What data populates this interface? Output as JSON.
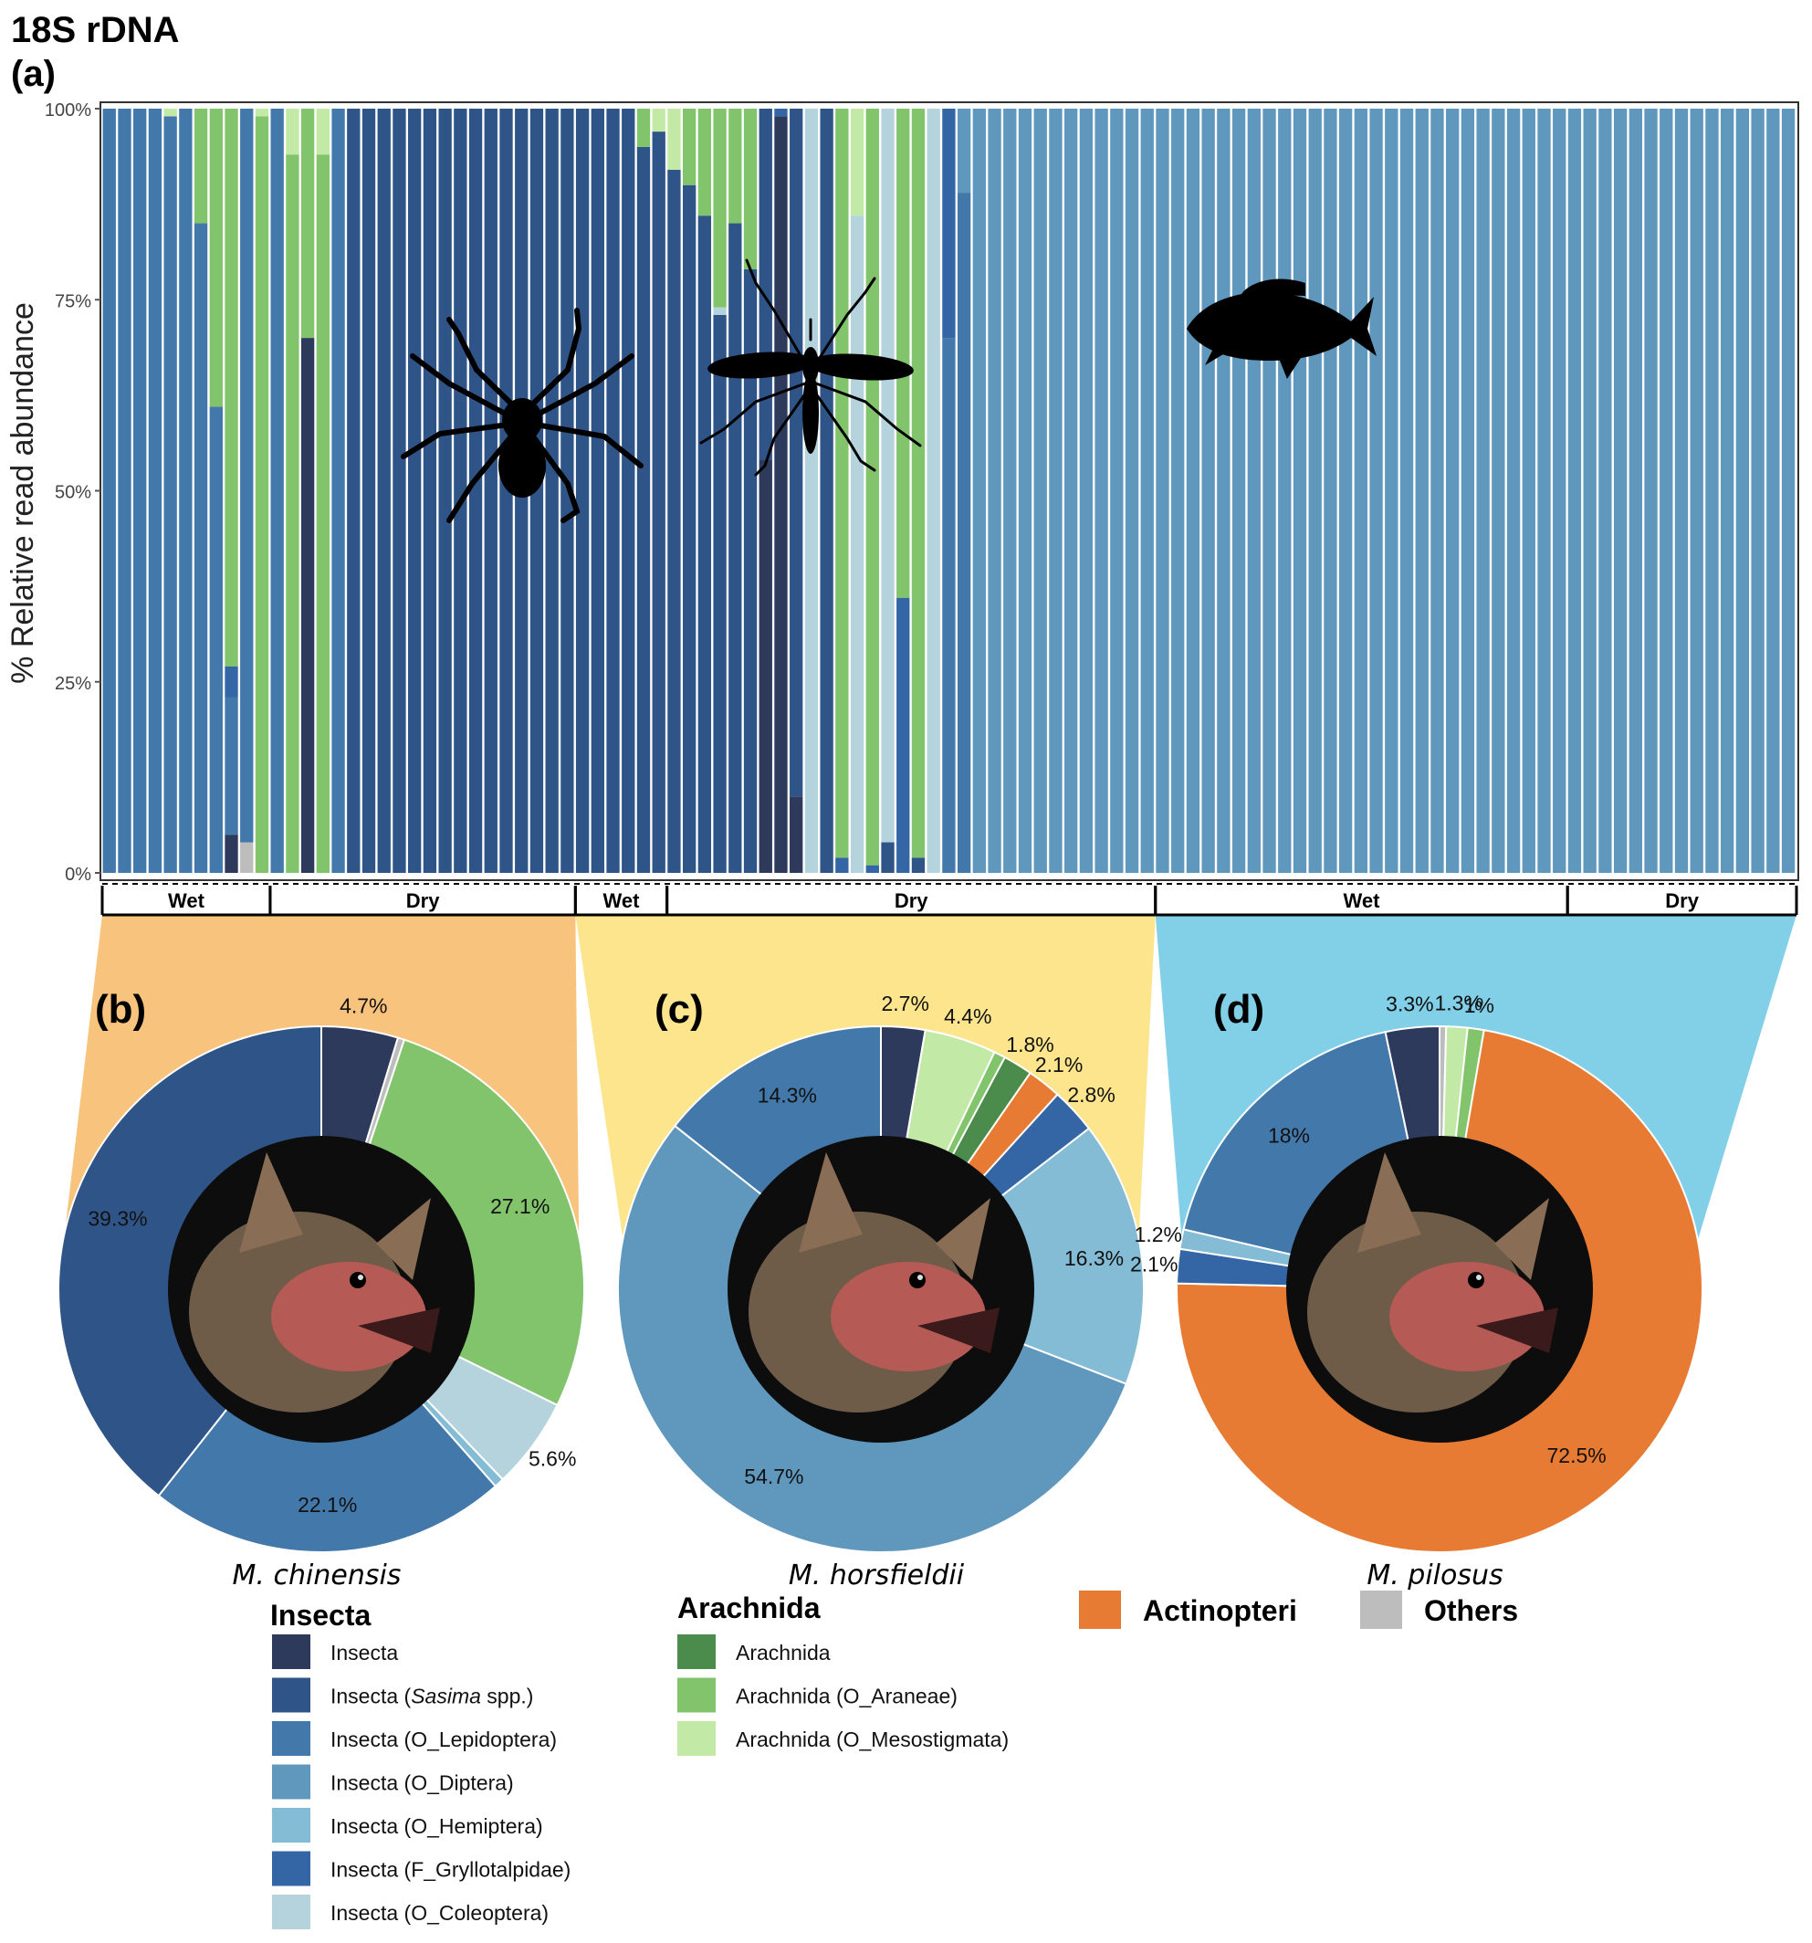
{
  "figure": {
    "title": "18S rDNA",
    "panel_a_label": "(a)",
    "ylabel": "% Relative read abundance",
    "yticks": [
      "0%",
      "25%",
      "50%",
      "75%",
      "100%"
    ],
    "season_groups": [
      {
        "bat": "M. chinensis",
        "accent": "#f8c37c",
        "seasons": [
          {
            "label": "Wet",
            "start": 0,
            "end": 11
          },
          {
            "label": "Dry",
            "start": 11,
            "end": 31
          }
        ]
      },
      {
        "bat": "M. horsfieldii",
        "accent": "#fce58c",
        "seasons": [
          {
            "label": "Wet",
            "start": 31,
            "end": 37
          },
          {
            "label": "Dry",
            "start": 37,
            "end": 69
          }
        ]
      },
      {
        "bat": "M. pilosus",
        "accent": "#82cfe8",
        "seasons": [
          {
            "label": "Wet",
            "start": 69,
            "end": 96
          },
          {
            "label": "Dry",
            "start": 96,
            "end": 111
          }
        ]
      }
    ],
    "icons": [
      "spider-icon",
      "mosquito-icon",
      "fish-icon"
    ]
  },
  "legend": {
    "insecta_title": "Insecta",
    "arachnida_title": "Arachnida",
    "actinopteri_title": "Actinopteri",
    "others_title": "Others",
    "insecta_items": [
      {
        "key": "ins",
        "label": "Insecta",
        "color": "#2e3a5c"
      },
      {
        "key": "sas",
        "label_pre": "Insecta (",
        "label_italic": "Sasima",
        "label_post": " spp.)",
        "color": "#2f5588"
      },
      {
        "key": "lep",
        "label": "Insecta (O_Lepidoptera)",
        "color": "#4378aa"
      },
      {
        "key": "dip",
        "label": "Insecta (O_Diptera)",
        "color": "#5f97bd"
      },
      {
        "key": "hem",
        "label": "Insecta (O_Hemiptera)",
        "color": "#84bcd6"
      },
      {
        "key": "gry",
        "label": "Insecta (F_Gryllotalpidae)",
        "color": "#3465a4"
      },
      {
        "key": "col",
        "label": "Insecta (O_Coleoptera)",
        "color": "#b4d3dd"
      }
    ],
    "arachnida_items": [
      {
        "key": "ara",
        "label": "Arachnida",
        "color": "#4b8b4b"
      },
      {
        "key": "arn",
        "label": "Arachnida (O_Araneae)",
        "color": "#82c46c"
      },
      {
        "key": "mes",
        "label": "Arachnida (O_Mesostigmata)",
        "color": "#c2eaa6"
      }
    ],
    "actinopteri_color": "#e87b33",
    "others_color": "#bdbdbd"
  },
  "chart_data": [
    {
      "type": "bar",
      "stacked": true,
      "title": "18S rDNA",
      "panel": "(a)",
      "ylabel": "% Relative read abundance",
      "ylim": [
        0,
        100
      ],
      "yunit": "%",
      "x_count": 111,
      "series_order": [
        "oth",
        "ins",
        "sas",
        "lep",
        "dip",
        "hem",
        "gry",
        "col",
        "ara",
        "arn",
        "mes",
        "act"
      ],
      "sample_values": [
        {
          "lep": 100
        },
        {
          "lep": 100
        },
        {
          "lep": 100
        },
        {
          "lep": 100
        },
        {
          "lep": 99,
          "mes": 1
        },
        {
          "lep": 100
        },
        {
          "lep": 85,
          "arn": 15
        },
        {
          "lep": 61,
          "arn": 39
        },
        {
          "lep": 18,
          "gry": 4,
          "ins": 5,
          "arn": 73
        },
        {
          "oth": 4,
          "lep": 96
        },
        {
          "mes": 1,
          "arn": 99
        },
        {
          "lep": 100
        },
        {
          "mes": 6,
          "arn": 94
        },
        {
          "ins": 70,
          "arn": 30
        },
        {
          "mes": 6,
          "arn": 94
        },
        {
          "lep": 100
        },
        {
          "sas": 100
        },
        {
          "sas": 100
        },
        {
          "sas": 100
        },
        {
          "sas": 100
        },
        {
          "sas": 100
        },
        {
          "sas": 100
        },
        {
          "sas": 100
        },
        {
          "sas": 100
        },
        {
          "sas": 100
        },
        {
          "sas": 100
        },
        {
          "sas": 100
        },
        {
          "sas": 100
        },
        {
          "sas": 100
        },
        {
          "sas": 100
        },
        {
          "sas": 100
        },
        {
          "sas": 100
        },
        {
          "sas": 100
        },
        {
          "sas": 100
        },
        {
          "sas": 100
        },
        {
          "sas": 95,
          "arn": 5
        },
        {
          "sas": 97,
          "mes": 3
        },
        {
          "sas": 92,
          "mes": 8
        },
        {
          "sas": 90,
          "arn": 10
        },
        {
          "sas": 86,
          "arn": 14
        },
        {
          "sas": 73,
          "col": 1,
          "arn": 26
        },
        {
          "sas": 85,
          "arn": 15
        },
        {
          "sas": 79,
          "arn": 21
        },
        {
          "sas": 46,
          "ins": 54
        },
        {
          "gry": 1,
          "ins": 99
        },
        {
          "sas": 90,
          "ins": 10
        },
        {
          "col": 100
        },
        {
          "sas": 100
        },
        {
          "gry": 2,
          "arn": 98
        },
        {
          "col": 86,
          "mes": 14
        },
        {
          "gry": 1,
          "arn": 99
        },
        {
          "sas": 4,
          "col": 96
        },
        {
          "gry": 36,
          "arn": 64
        },
        {
          "sas": 2,
          "arn": 98
        },
        {
          "col": 100
        },
        {
          "gry": 30,
          "lep": 70
        },
        {
          "dip": 11,
          "lep": 89
        },
        {
          "dip": 100
        },
        {
          "dip": 100
        },
        {
          "dip": 100
        },
        {
          "dip": 100
        },
        {
          "dip": 100
        },
        {
          "dip": 100
        },
        {
          "dip": 100
        },
        {
          "dip": 100
        },
        {
          "dip": 100
        },
        {
          "dip": 100
        },
        {
          "dip": 100
        },
        {
          "dip": 100
        },
        {
          "dip": 100
        },
        {
          "dip": 100
        },
        {
          "dip": 100
        },
        {
          "dip": 100
        },
        {
          "dip": 100
        },
        {
          "dip": 100
        },
        {
          "dip": 100
        },
        {
          "dip": 100
        },
        {
          "dip": 100
        },
        {
          "dip": 100
        },
        {
          "dip": 100
        },
        {
          "dip": 100
        },
        {
          "dip": 100
        },
        {
          "dip": 100
        },
        {
          "dip": 100
        },
        {
          "dip": 100
        },
        {
          "dip": 100
        },
        {
          "dip": 100
        },
        {
          "dip": 100
        },
        {
          "dip": 100
        },
        {
          "dip": 100
        },
        {
          "dip": 100
        },
        {
          "dip": 100
        },
        {
          "dip": 100
        },
        {
          "dip": 100
        },
        {
          "dip": 100
        },
        {
          "dip": 100
        },
        {
          "dip": 100
        },
        {
          "dip": 100
        },
        {
          "dip": 100
        },
        {
          "dip": 100
        },
        {
          "dip": 100
        },
        {
          "dip": 100
        },
        {
          "dip": 100
        },
        {
          "dip": 100
        },
        {
          "dip": 100
        },
        {
          "dip": 100
        },
        {
          "dip": 100
        },
        {
          "dip": 100
        },
        {
          "dip": 100
        },
        {
          "dip": 100
        },
        {
          "dip": 100
        }
      ]
    },
    {
      "type": "pie",
      "donut": true,
      "panel": "(b)",
      "species_label": "M. chinensis",
      "slices": [
        {
          "key": "ins",
          "value": 4.7,
          "label": "4.7%"
        },
        {
          "key": "oth",
          "value": 0.4,
          "label": ""
        },
        {
          "key": "arn",
          "value": 27.1,
          "label": "27.1%"
        },
        {
          "key": "col",
          "value": 5.6,
          "label": "5.6%"
        },
        {
          "key": "hem",
          "value": 0.6,
          "label": ""
        },
        {
          "key": "lep",
          "value": 22.1,
          "label": "22.1%"
        },
        {
          "key": "sas",
          "value": 39.3,
          "label": "39.3%"
        }
      ]
    },
    {
      "type": "pie",
      "donut": true,
      "panel": "(c)",
      "species_label": "M. horsfieldii",
      "slices": [
        {
          "key": "ins",
          "value": 2.7,
          "label": "2.7%"
        },
        {
          "key": "mes",
          "value": 4.4,
          "label": "4.4%"
        },
        {
          "key": "arn",
          "value": 0.7,
          "label": ""
        },
        {
          "key": "ara",
          "value": 1.8,
          "label": "1.8%"
        },
        {
          "key": "act",
          "value": 2.1,
          "label": "2.1%"
        },
        {
          "key": "gry",
          "value": 2.8,
          "label": "2.8%"
        },
        {
          "key": "hem",
          "value": 16.3,
          "label": "16.3%"
        },
        {
          "key": "dip",
          "value": 54.7,
          "label": "54.7%"
        },
        {
          "key": "lep",
          "value": 14.3,
          "label": "14.3%"
        }
      ]
    },
    {
      "type": "pie",
      "donut": true,
      "panel": "(d)",
      "species_label": "M. pilosus",
      "slices": [
        {
          "key": "oth",
          "value": 0.4,
          "label": ""
        },
        {
          "key": "mes",
          "value": 1.3,
          "label": "1.3%"
        },
        {
          "key": "arn",
          "value": 1.0,
          "label": "1%"
        },
        {
          "key": "act",
          "value": 72.5,
          "label": "72.5%"
        },
        {
          "key": "gry",
          "value": 2.1,
          "label": "2.1%"
        },
        {
          "key": "hem",
          "value": 1.2,
          "label": "1.2%"
        },
        {
          "key": "lep",
          "value": 18.0,
          "label": "18%"
        },
        {
          "key": "ins",
          "value": 3.3,
          "label": "3.3%"
        }
      ]
    }
  ]
}
